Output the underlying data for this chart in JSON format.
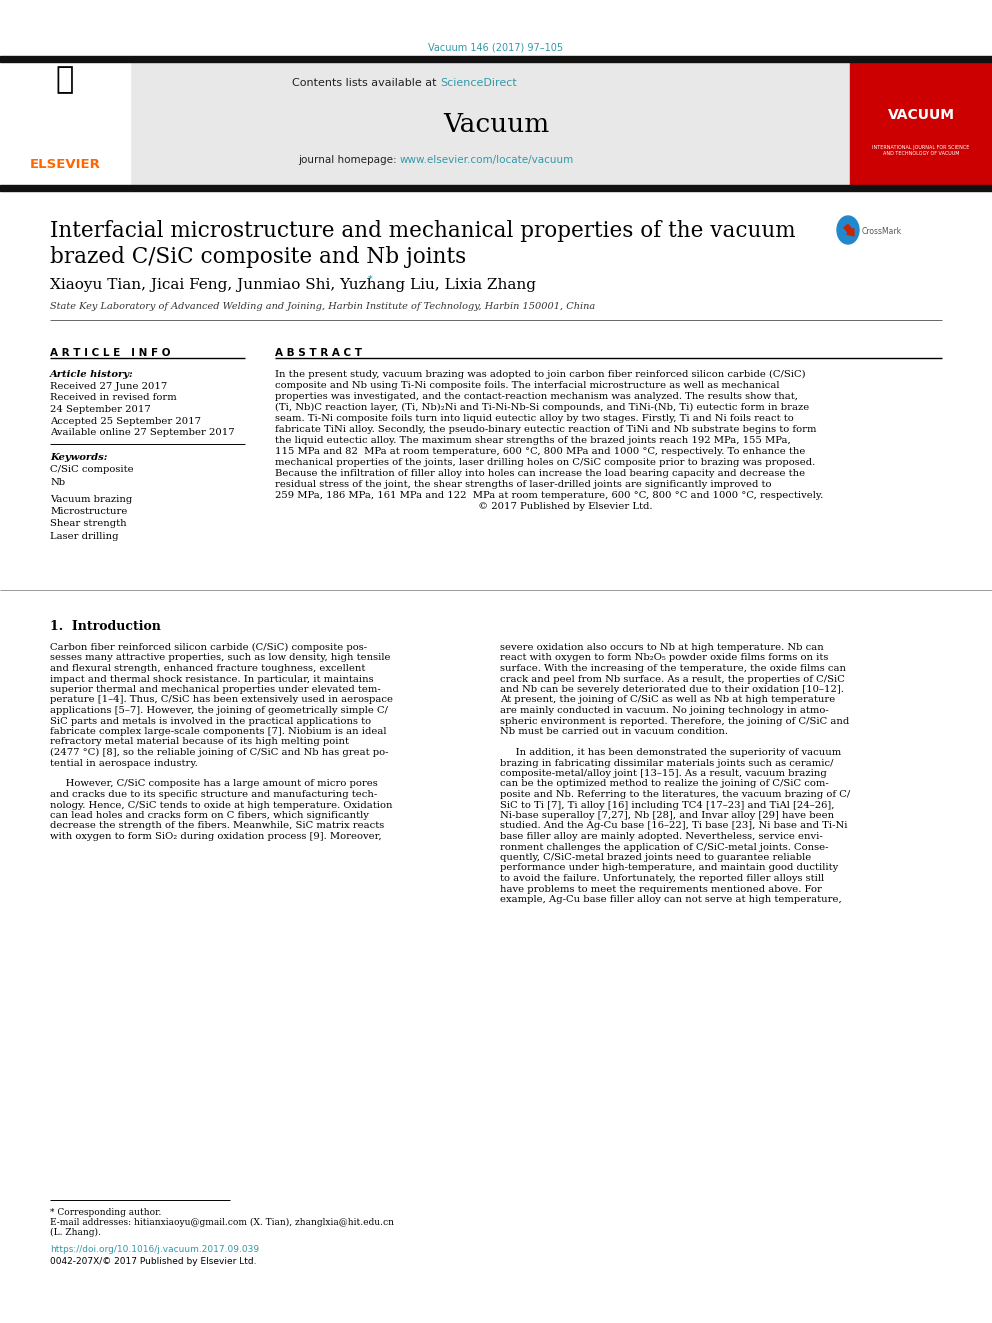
{
  "journal_ref": "Vacuum 146 (2017) 97–105",
  "journal_ref_color": "#3399aa",
  "sciencedirect_color": "#3399aa",
  "journal_homepage_color": "#3399aa",
  "elsevier_color": "#FF6600",
  "title_line1": "Interfacial microstructure and mechanical properties of the vacuum",
  "title_line2": "brazed C/SiC composite and Nb joints",
  "authors": "Xiaoyu Tian, Jicai Feng, Junmiao Shi, Yuzhang Liu, Lixia Zhang",
  "affiliation": "State Key Laboratory of Advanced Welding and Joining, Harbin Institute of Technology, Harbin 150001, China",
  "article_history_label": "Article history:",
  "history_lines": [
    "Received 27 June 2017",
    "Received in revised form",
    "24 September 2017",
    "Accepted 25 September 2017",
    "Available online 27 September 2017"
  ],
  "keywords_label": "Keywords:",
  "keywords": [
    "C/SiC composite",
    "Nb",
    "Vacuum brazing",
    "Microstructure",
    "Shear strength",
    "Laser drilling"
  ],
  "abstract_lines": [
    "In the present study, vacuum brazing was adopted to join carbon fiber reinforced silicon carbide (C/SiC)",
    "composite and Nb using Ti-Ni composite foils. The interfacial microstructure as well as mechanical",
    "properties was investigated, and the contact-reaction mechanism was analyzed. The results show that,",
    "(Ti, Nb)C reaction layer, (Ti, Nb)₂Ni and Ti-Ni-Nb-Si compounds, and TiNi-(Nb, Ti) eutectic form in braze",
    "seam. Ti-Ni composite foils turn into liquid eutectic alloy by two stages. Firstly, Ti and Ni foils react to",
    "fabricate TiNi alloy. Secondly, the pseudo-binary eutectic reaction of TiNi and Nb substrate begins to form",
    "the liquid eutectic alloy. The maximum shear strengths of the brazed joints reach 192 MPa, 155 MPa,",
    "115 MPa and 82  MPa at room temperature, 600 °C, 800 MPa and 1000 °C, respectively. To enhance the",
    "mechanical properties of the joints, laser drilling holes on C/SiC composite prior to brazing was proposed.",
    "Because the infiltration of filler alloy into holes can increase the load bearing capacity and decrease the",
    "residual stress of the joint, the shear strengths of laser-drilled joints are significantly improved to",
    "259 MPa, 186 MPa, 161 MPa and 122  MPa at room temperature, 600 °C, 800 °C and 1000 °C, respectively.",
    "                                                                 © 2017 Published by Elsevier Ltd."
  ],
  "section1_title": "1.  Introduction",
  "col1_lines": [
    "Carbon fiber reinforced silicon carbide (C/SiC) composite pos-",
    "sesses many attractive properties, such as low density, high tensile",
    "and flexural strength, enhanced fracture toughness, excellent",
    "impact and thermal shock resistance. In particular, it maintains",
    "superior thermal and mechanical properties under elevated tem-",
    "perature [1–4]. Thus, C/SiC has been extensively used in aerospace",
    "applications [5–7]. However, the joining of geometrically simple C/",
    "SiC parts and metals is involved in the practical applications to",
    "fabricate complex large-scale components [7]. Niobium is an ideal",
    "refractory metal material because of its high melting point",
    "(2477 °C) [8], so the reliable joining of C/SiC and Nb has great po-",
    "tential in aerospace industry.",
    "",
    "     However, C/SiC composite has a large amount of micro pores",
    "and cracks due to its specific structure and manufacturing tech-",
    "nology. Hence, C/SiC tends to oxide at high temperature. Oxidation",
    "can lead holes and cracks form on C fibers, which significantly",
    "decrease the strength of the fibers. Meanwhile, SiC matrix reacts",
    "with oxygen to form SiO₂ during oxidation process [9]. Moreover,"
  ],
  "col2_lines": [
    "severe oxidation also occurs to Nb at high temperature. Nb can",
    "react with oxygen to form Nb₂O₅ powder oxide films forms on its",
    "surface. With the increasing of the temperature, the oxide films can",
    "crack and peel from Nb surface. As a result, the properties of C/SiC",
    "and Nb can be severely deteriorated due to their oxidation [10–12].",
    "At present, the joining of C/SiC as well as Nb at high temperature",
    "are mainly conducted in vacuum. No joining technology in atmo-",
    "spheric environment is reported. Therefore, the joining of C/SiC and",
    "Nb must be carried out in vacuum condition.",
    "",
    "     In addition, it has been demonstrated the superiority of vacuum",
    "brazing in fabricating dissimilar materials joints such as ceramic/",
    "composite-metal/alloy joint [13–15]. As a result, vacuum brazing",
    "can be the optimized method to realize the joining of C/SiC com-",
    "posite and Nb. Referring to the literatures, the vacuum brazing of C/",
    "SiC to Ti [7], Ti alloy [16] including TC4 [17–23] and TiAl [24–26],",
    "Ni-base superalloy [7,27], Nb [28], and Invar alloy [29] have been",
    "studied. And the Ag-Cu base [16–22], Ti base [23], Ni base and Ti-Ni",
    "base filler alloy are mainly adopted. Nevertheless, service envi-",
    "ronment challenges the application of C/SiC-metal joints. Conse-",
    "quently, C/SiC-metal brazed joints need to guarantee reliable",
    "performance under high-temperature, and maintain good ductility",
    "to avoid the failure. Unfortunately, the reported filler alloys still",
    "have problems to meet the requirements mentioned above. For",
    "example, Ag-Cu base filler alloy can not serve at high temperature,"
  ],
  "footnote1": "* Corresponding author.",
  "footnote2": "E-mail addresses: hitianxiaoyu@gmail.com (X. Tian), zhanglxia@hit.edu.cn",
  "footnote3": "(L. Zhang).",
  "doi_text": "https://doi.org/10.1016/j.vacuum.2017.09.039",
  "issn_text": "0042-207X/© 2017 Published by Elsevier Ltd."
}
